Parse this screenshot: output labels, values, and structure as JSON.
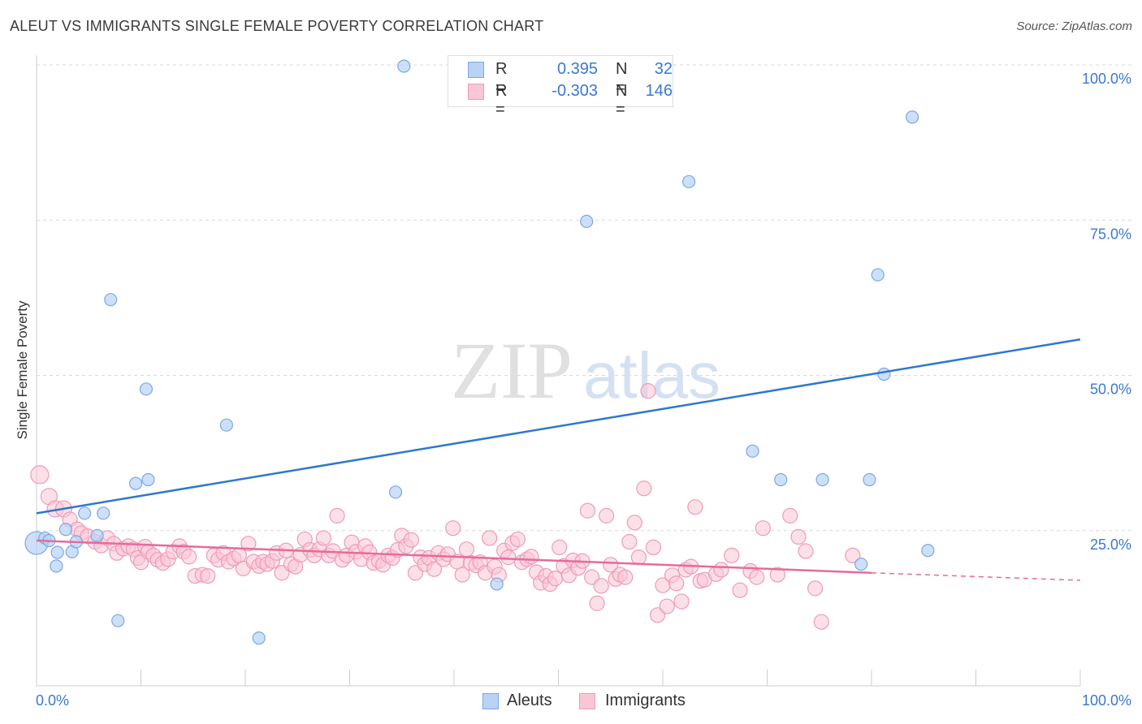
{
  "header": {
    "title": "ALEUT VS IMMIGRANTS SINGLE FEMALE POVERTY CORRELATION CHART",
    "source": "Source: ZipAtlas.com"
  },
  "watermark": {
    "part1": "ZIP",
    "part2": "atlas"
  },
  "colors": {
    "blue_fill": "#b8d3f5",
    "blue_stroke": "#7aa8e6",
    "blue_line": "#2f76d0",
    "pink_fill": "#f9c6d6",
    "pink_stroke": "#ef9ab6",
    "pink_line": "#e86a9a",
    "tick_label": "#3a78d4",
    "grid": "#d9d9d9"
  },
  "legend": {
    "rows": [
      {
        "r_label": "R =",
        "r_value": "0.395",
        "n_label": "N =",
        "n_value": "32",
        "swatch": "blue"
      },
      {
        "r_label": "R =",
        "r_value": "-0.303",
        "n_label": "N =",
        "n_value": "146",
        "swatch": "pink"
      }
    ]
  },
  "bottom_legend": {
    "series1": "Aleuts",
    "series2": "Immigrants"
  },
  "chart_data": {
    "type": "scatter",
    "title": "ALEUT VS IMMIGRANTS SINGLE FEMALE POVERTY CORRELATION CHART",
    "xlabel": "",
    "ylabel": "Single Female Poverty",
    "xlim": [
      0,
      100
    ],
    "ylim": [
      0,
      100
    ],
    "x_tick_labels": [
      "0.0%",
      "100.0%"
    ],
    "y_tick_labels": [
      "25.0%",
      "50.0%",
      "75.0%",
      "100.0%"
    ],
    "y_ticks": [
      25,
      50,
      75,
      100
    ],
    "grid": true,
    "legend_position": "top-center",
    "series": [
      {
        "name": "Aleuts",
        "color": "blue",
        "r": 0.395,
        "n": 32,
        "trend": {
          "x": [
            0,
            100
          ],
          "y": [
            27.8,
            55.8
          ],
          "style": "solid"
        },
        "points": [
          [
            0,
            23
          ],
          [
            0.8,
            23.8
          ],
          [
            1.2,
            23.4
          ],
          [
            2,
            21.5
          ],
          [
            1.9,
            19.3
          ],
          [
            2.8,
            25.2
          ],
          [
            3.4,
            21.6
          ],
          [
            3.8,
            23.2
          ],
          [
            4.6,
            27.8
          ],
          [
            5.8,
            24.2
          ],
          [
            6.4,
            27.8
          ],
          [
            7.1,
            62.2
          ],
          [
            7.8,
            10.5
          ],
          [
            9.5,
            32.6
          ],
          [
            10.5,
            47.8
          ],
          [
            10.7,
            33.2
          ],
          [
            18.2,
            42.0
          ],
          [
            21.3,
            7.7
          ],
          [
            34.4,
            31.2
          ],
          [
            35.2,
            99.8
          ],
          [
            44.1,
            16.4
          ],
          [
            52.7,
            74.8
          ],
          [
            62.5,
            81.2
          ],
          [
            68.6,
            37.8
          ],
          [
            71.3,
            33.2
          ],
          [
            75.3,
            33.2
          ],
          [
            79.8,
            33.2
          ],
          [
            80.6,
            66.2
          ],
          [
            81.2,
            50.2
          ],
          [
            83.9,
            91.6
          ],
          [
            85.4,
            21.8
          ],
          [
            79.0,
            19.6
          ]
        ]
      },
      {
        "name": "Immigrants",
        "color": "pink",
        "r": -0.303,
        "n": 146,
        "trend": {
          "x": [
            0,
            80,
            100
          ],
          "y": [
            23.4,
            18.2,
            17.0
          ],
          "style": "solid-then-dashed"
        },
        "points": [
          [
            0.3,
            34
          ],
          [
            1.2,
            30.5
          ],
          [
            1.8,
            28.5
          ],
          [
            2.6,
            28.5
          ],
          [
            3.2,
            26.8
          ],
          [
            3.9,
            25.2
          ],
          [
            4.3,
            24.6
          ],
          [
            4.9,
            24.1
          ],
          [
            5.6,
            23.2
          ],
          [
            6.2,
            22.6
          ],
          [
            6.8,
            23.8
          ],
          [
            7.4,
            22.9
          ],
          [
            7.7,
            21.4
          ],
          [
            8.3,
            22.1
          ],
          [
            8.8,
            22.5
          ],
          [
            9.3,
            22.0
          ],
          [
            9.7,
            20.6
          ],
          [
            10.0,
            19.9
          ],
          [
            10.4,
            22.4
          ],
          [
            10.7,
            21.6
          ],
          [
            11.2,
            21.0
          ],
          [
            11.6,
            20.3
          ],
          [
            12.1,
            19.8
          ],
          [
            12.6,
            20.4
          ],
          [
            13.1,
            21.6
          ],
          [
            13.7,
            22.5
          ],
          [
            14.1,
            21.6
          ],
          [
            14.6,
            20.8
          ],
          [
            15.2,
            17.7
          ],
          [
            15.9,
            17.9
          ],
          [
            16.4,
            17.7
          ],
          [
            17.0,
            21.0
          ],
          [
            17.4,
            20.3
          ],
          [
            17.9,
            21.4
          ],
          [
            18.4,
            20.0
          ],
          [
            18.9,
            20.5
          ],
          [
            19.4,
            21.0
          ],
          [
            19.8,
            18.9
          ],
          [
            20.3,
            22.9
          ],
          [
            20.8,
            20.0
          ],
          [
            21.3,
            19.3
          ],
          [
            21.7,
            20.0
          ],
          [
            22.1,
            19.6
          ],
          [
            22.6,
            20.1
          ],
          [
            23.0,
            21.4
          ],
          [
            23.5,
            18.2
          ],
          [
            23.9,
            21.8
          ],
          [
            24.4,
            19.6
          ],
          [
            24.8,
            19.2
          ],
          [
            25.3,
            21.1
          ],
          [
            25.7,
            23.6
          ],
          [
            26.2,
            21.9
          ],
          [
            26.6,
            21.0
          ],
          [
            27.1,
            22.0
          ],
          [
            27.5,
            23.8
          ],
          [
            28.0,
            21.0
          ],
          [
            28.4,
            21.7
          ],
          [
            28.8,
            27.4
          ],
          [
            29.3,
            20.3
          ],
          [
            29.7,
            21.0
          ],
          [
            30.2,
            23.1
          ],
          [
            30.6,
            21.6
          ],
          [
            31.1,
            20.4
          ],
          [
            31.5,
            22.5
          ],
          [
            31.9,
            21.5
          ],
          [
            32.3,
            19.8
          ],
          [
            32.8,
            20.1
          ],
          [
            33.2,
            19.5
          ],
          [
            33.7,
            21.0
          ],
          [
            34.1,
            20.6
          ],
          [
            34.6,
            21.9
          ],
          [
            35.0,
            24.2
          ],
          [
            35.4,
            22.5
          ],
          [
            35.9,
            23.5
          ],
          [
            36.3,
            18.2
          ],
          [
            36.8,
            20.7
          ],
          [
            37.2,
            19.6
          ],
          [
            37.6,
            20.6
          ],
          [
            38.1,
            18.8
          ],
          [
            38.5,
            21.4
          ],
          [
            39.0,
            20.4
          ],
          [
            39.4,
            21.2
          ],
          [
            39.9,
            25.4
          ],
          [
            40.3,
            20.0
          ],
          [
            40.8,
            17.9
          ],
          [
            41.2,
            22.0
          ],
          [
            41.6,
            19.8
          ],
          [
            42.1,
            19.4
          ],
          [
            42.5,
            19.9
          ],
          [
            43.0,
            18.2
          ],
          [
            43.4,
            23.8
          ],
          [
            43.9,
            19.2
          ],
          [
            44.3,
            17.9
          ],
          [
            44.8,
            21.8
          ],
          [
            45.2,
            20.7
          ],
          [
            45.6,
            23.0
          ],
          [
            46.1,
            23.6
          ],
          [
            46.5,
            19.9
          ],
          [
            47.0,
            20.4
          ],
          [
            47.4,
            20.8
          ],
          [
            47.9,
            18.3
          ],
          [
            48.3,
            16.6
          ],
          [
            48.8,
            17.7
          ],
          [
            49.2,
            16.4
          ],
          [
            49.7,
            17.3
          ],
          [
            50.1,
            22.3
          ],
          [
            50.5,
            19.3
          ],
          [
            51.0,
            17.8
          ],
          [
            51.4,
            20.2
          ],
          [
            51.9,
            19.0
          ],
          [
            52.3,
            20.1
          ],
          [
            52.8,
            28.2
          ],
          [
            53.2,
            17.5
          ],
          [
            53.7,
            13.3
          ],
          [
            54.1,
            16.1
          ],
          [
            54.6,
            27.4
          ],
          [
            55.0,
            19.5
          ],
          [
            55.5,
            17.2
          ],
          [
            55.9,
            17.9
          ],
          [
            56.4,
            17.5
          ],
          [
            56.8,
            23.2
          ],
          [
            57.3,
            26.3
          ],
          [
            57.7,
            20.7
          ],
          [
            58.2,
            31.8
          ],
          [
            58.6,
            47.5
          ],
          [
            59.1,
            22.3
          ],
          [
            59.5,
            11.4
          ],
          [
            60.0,
            16.2
          ],
          [
            60.4,
            12.8
          ],
          [
            60.9,
            17.8
          ],
          [
            61.3,
            16.5
          ],
          [
            61.8,
            13.6
          ],
          [
            62.2,
            18.7
          ],
          [
            62.7,
            19.2
          ],
          [
            63.1,
            28.8
          ],
          [
            63.6,
            16.9
          ],
          [
            64.0,
            17.1
          ],
          [
            65.1,
            18.0
          ],
          [
            65.6,
            18.7
          ],
          [
            66.6,
            21.0
          ],
          [
            67.4,
            15.4
          ],
          [
            68.4,
            18.5
          ],
          [
            69.0,
            17.5
          ],
          [
            69.6,
            25.4
          ],
          [
            71.0,
            17.9
          ],
          [
            72.2,
            27.4
          ],
          [
            73.0,
            24.0
          ],
          [
            73.7,
            21.7
          ],
          [
            74.6,
            15.7
          ],
          [
            75.2,
            10.3
          ],
          [
            78.2,
            21.0
          ]
        ]
      }
    ]
  }
}
